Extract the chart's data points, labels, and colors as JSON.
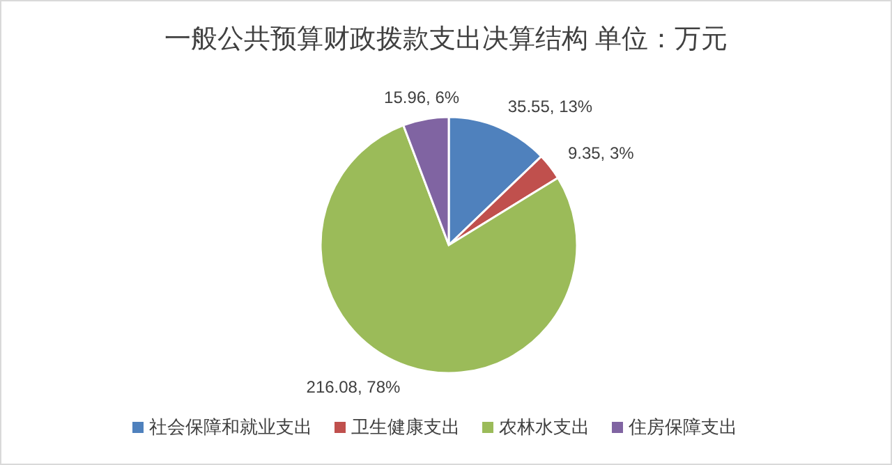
{
  "chart_data": {
    "type": "pie",
    "title": "一般公共预算财政拨款支出决算结构 单位：万元",
    "categories": [
      "社会保障和就业支出",
      "卫生健康支出",
      "农林水支出",
      "住房保障支出"
    ],
    "values": [
      35.55,
      9.35,
      216.08,
      15.96
    ],
    "colors": [
      "#4f81bd",
      "#c0504d",
      "#9bbb59",
      "#8064a2"
    ],
    "value_labels": [
      "35.55, 13%",
      "9.35, 3%",
      "216.08, 78%",
      "15.96, 6%"
    ],
    "legend": "bottom"
  }
}
